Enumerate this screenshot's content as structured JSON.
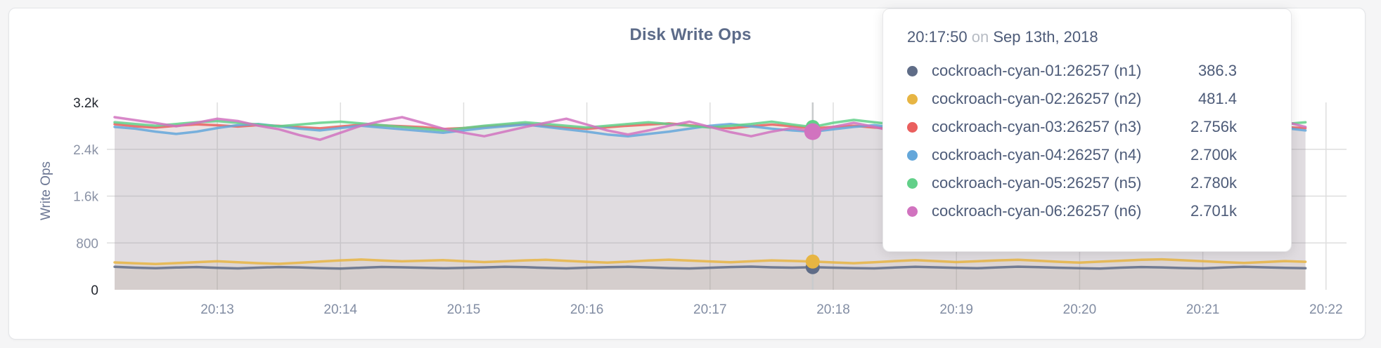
{
  "chart": {
    "title": "Disk Write Ops",
    "ylabel": "Write Ops"
  },
  "tooltip": {
    "time": "20:17:50",
    "on_word": "on",
    "date": "Sep 13th, 2018",
    "rows": [
      {
        "name": "cockroach-cyan-01:26257 (n1)",
        "value": "386.3"
      },
      {
        "name": "cockroach-cyan-02:26257 (n2)",
        "value": "481.4"
      },
      {
        "name": "cockroach-cyan-03:26257 (n3)",
        "value": "2.756k"
      },
      {
        "name": "cockroach-cyan-04:26257 (n4)",
        "value": "2.700k"
      },
      {
        "name": "cockroach-cyan-05:26257 (n5)",
        "value": "2.780k"
      },
      {
        "name": "cockroach-cyan-06:26257 (n6)",
        "value": "2.701k"
      }
    ]
  },
  "chart_data": {
    "type": "line",
    "title": "Disk Write Ops",
    "xlabel": "",
    "ylabel": "Write Ops",
    "ylim": [
      0,
      3200
    ],
    "grid": true,
    "legend_position": "tooltip",
    "x_start_time": "20:12:10",
    "x_step_seconds": 10,
    "x_domain_seconds": [
      0,
      600
    ],
    "y_ticks": [
      {
        "label": "3.2k",
        "value": 3200,
        "emphasis": true,
        "gridline": false
      },
      {
        "label": "2.4k",
        "value": 2400,
        "emphasis": false,
        "gridline": true
      },
      {
        "label": "1.6k",
        "value": 1600,
        "emphasis": false,
        "gridline": true
      },
      {
        "label": "800",
        "value": 800,
        "emphasis": false,
        "gridline": true
      },
      {
        "label": "0",
        "value": 0,
        "emphasis": true,
        "gridline": false
      }
    ],
    "x_ticks": [
      {
        "label": "20:13",
        "t": 50
      },
      {
        "label": "20:14",
        "t": 110
      },
      {
        "label": "20:15",
        "t": 170
      },
      {
        "label": "20:16",
        "t": 230
      },
      {
        "label": "20:17",
        "t": 290
      },
      {
        "label": "20:18",
        "t": 350
      },
      {
        "label": "20:19",
        "t": 410
      },
      {
        "label": "20:20",
        "t": 470
      },
      {
        "label": "20:21",
        "t": 530
      },
      {
        "label": "20:22",
        "t": 590
      }
    ],
    "hover": {
      "t": 340,
      "index": 34,
      "time": "20:17:50",
      "date": "Sep 13th, 2018"
    },
    "series": [
      {
        "id": "n1",
        "label": "cockroach-cyan-01:26257 (n1)",
        "color": "#5f6c87",
        "hover_value": 386.3,
        "values": [
          392,
          378,
          368,
          380,
          388,
          374,
          366,
          378,
          388,
          382,
          370,
          362,
          376,
          390,
          384,
          376,
          368,
          374,
          382,
          392,
          386,
          374,
          366,
          378,
          386,
          392,
          382,
          370,
          364,
          376,
          388,
          396,
          384,
          378,
          386.3,
          378,
          370,
          366,
          380,
          392,
          384,
          374,
          368,
          382,
          394,
          386,
          376,
          368,
          362,
          378,
          388,
          382,
          372,
          366,
          380,
          392,
          384,
          374,
          368
        ]
      },
      {
        "id": "n2",
        "label": "cockroach-cyan-02:26257 (n2)",
        "color": "#e7b543",
        "hover_value": 481.4,
        "values": [
          468,
          452,
          440,
          456,
          472,
          486,
          470,
          454,
          444,
          462,
          482,
          502,
          516,
          500,
          486,
          496,
          506,
          488,
          474,
          486,
          502,
          512,
          494,
          478,
          464,
          480,
          500,
          514,
          498,
          484,
          470,
          486,
          502,
          492,
          481.4,
          468,
          454,
          470,
          490,
          506,
          490,
          474,
          486,
          502,
          512,
          496,
          478,
          464,
          480,
          496,
          512,
          520,
          504,
          488,
          472,
          458,
          474,
          490,
          478
        ]
      },
      {
        "id": "n3",
        "label": "cockroach-cyan-03:26257 (n3)",
        "color": "#ea5f5e",
        "hover_value": 2756,
        "values": [
          2828,
          2792,
          2772,
          2802,
          2826,
          2810,
          2788,
          2814,
          2800,
          2778,
          2758,
          2790,
          2820,
          2808,
          2794,
          2778,
          2746,
          2762,
          2790,
          2812,
          2832,
          2800,
          2772,
          2750,
          2776,
          2802,
          2822,
          2842,
          2810,
          2780,
          2760,
          2792,
          2822,
          2794,
          2756,
          2782,
          2802,
          2772,
          2750,
          2776,
          2802,
          2822,
          2790,
          2764,
          2744,
          2772,
          2802,
          2826,
          2800,
          2774,
          2754,
          2782,
          2812,
          2832,
          2800,
          2770,
          2750,
          2776,
          2762
        ]
      },
      {
        "id": "n4",
        "label": "cockroach-cyan-04:26257 (n4)",
        "color": "#64a7da",
        "hover_value": 2700,
        "values": [
          2782,
          2752,
          2702,
          2662,
          2702,
          2762,
          2812,
          2832,
          2792,
          2752,
          2722,
          2762,
          2802,
          2772,
          2742,
          2712,
          2682,
          2722,
          2762,
          2792,
          2822,
          2782,
          2742,
          2702,
          2652,
          2622,
          2662,
          2702,
          2752,
          2802,
          2832,
          2792,
          2752,
          2722,
          2700,
          2742,
          2782,
          2812,
          2772,
          2732,
          2692,
          2722,
          2762,
          2802,
          2772,
          2732,
          2702,
          2742,
          2782,
          2812,
          2782,
          2742,
          2702,
          2672,
          2712,
          2752,
          2792,
          2762,
          2722
        ]
      },
      {
        "id": "n5",
        "label": "cockroach-cyan-05:26257 (n5)",
        "color": "#62d089",
        "hover_value": 2780,
        "values": [
          2862,
          2832,
          2802,
          2832,
          2862,
          2882,
          2852,
          2822,
          2792,
          2822,
          2852,
          2872,
          2842,
          2812,
          2782,
          2752,
          2722,
          2762,
          2802,
          2832,
          2862,
          2832,
          2802,
          2772,
          2802,
          2832,
          2862,
          2832,
          2802,
          2772,
          2802,
          2832,
          2872,
          2822,
          2780,
          2852,
          2902,
          2862,
          2822,
          2782,
          2812,
          2842,
          2872,
          2842,
          2802,
          2772,
          2802,
          2832,
          2862,
          2832,
          2792,
          2762,
          2802,
          2842,
          2872,
          2842,
          2802,
          2832,
          2862
        ]
      },
      {
        "id": "n6",
        "label": "cockroach-cyan-06:26257 (n6)",
        "color": "#d173bf",
        "hover_value": 2701,
        "values": [
          2948,
          2898,
          2848,
          2792,
          2852,
          2922,
          2882,
          2802,
          2742,
          2642,
          2562,
          2682,
          2802,
          2882,
          2948,
          2852,
          2752,
          2682,
          2622,
          2702,
          2782,
          2852,
          2922,
          2822,
          2722,
          2652,
          2722,
          2802,
          2872,
          2782,
          2692,
          2622,
          2702,
          2762,
          2701,
          2782,
          2852,
          2782,
          2702,
          2632,
          2702,
          2792,
          2872,
          2792,
          2702,
          2632,
          2702,
          2782,
          2852,
          2922,
          2822,
          2722,
          2652,
          2732,
          2812,
          2892,
          2958,
          2872,
          2782
        ]
      }
    ],
    "colors": {
      "gridline": "#dedede",
      "hover_line": "#c9cbcd",
      "area_fill_opacity": 0.09
    }
  }
}
